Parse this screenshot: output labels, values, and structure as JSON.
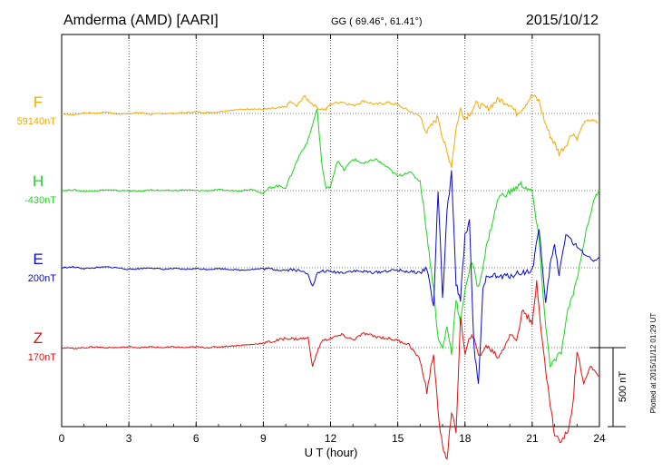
{
  "header": {
    "station": "Amderma (AMD)  [AARI]",
    "coords": "GG ( 69.46°,  61.41°)",
    "date": "2015/10/12"
  },
  "plotted_note": "Plotted at 2015/11/12 01:29 UT",
  "scale_label": "500 nT",
  "colors": {
    "F": "#f5a800",
    "H": "#1ed21e",
    "E": "#0a0ac8",
    "Z": "#e01010",
    "axis": "#000000"
  },
  "chart_data": {
    "type": "line",
    "xlabel": "U T (hour)",
    "xlim": [
      0,
      24
    ],
    "xticks": [
      "0",
      "3",
      "6",
      "9",
      "12",
      "15",
      "18",
      "21",
      "24"
    ],
    "scale_bar_nT": 500,
    "series": [
      {
        "name": "F",
        "baseline_label": "59140nT",
        "x": [
          0,
          0.5,
          1,
          1.5,
          2,
          2.5,
          3,
          3.5,
          4,
          4.5,
          5,
          5.5,
          6,
          6.5,
          7,
          7.5,
          8,
          8.5,
          9,
          9.5,
          10,
          10.2,
          10.5,
          10.8,
          11,
          11.2,
          11.5,
          11.8,
          12,
          12.5,
          13,
          13.5,
          14,
          14.5,
          15,
          15.3,
          15.6,
          16,
          16.3,
          16.6,
          16.8,
          17,
          17.2,
          17.4,
          17.6,
          17.8,
          18,
          18.2,
          18.5,
          19,
          19.5,
          20,
          20.3,
          20.6,
          21,
          21.3,
          21.6,
          21.8,
          22,
          22.2,
          22.5,
          22.8,
          23,
          23.3,
          23.6,
          24
        ],
        "y": [
          0,
          -10,
          5,
          0,
          10,
          -5,
          0,
          5,
          -5,
          0,
          0,
          5,
          10,
          5,
          10,
          20,
          25,
          30,
          25,
          30,
          40,
          75,
          45,
          110,
          85,
          60,
          30,
          25,
          60,
          75,
          50,
          80,
          55,
          70,
          55,
          30,
          10,
          -20,
          -120,
          -60,
          -20,
          -150,
          -250,
          -330,
          -100,
          30,
          -30,
          0,
          60,
          30,
          90,
          60,
          0,
          40,
          115,
          80,
          -70,
          -140,
          -190,
          -250,
          -200,
          -120,
          -160,
          -60,
          -40,
          -60
        ]
      },
      {
        "name": "H",
        "baseline_label": "-430nT",
        "x": [
          0,
          0.5,
          1,
          1.5,
          2,
          2.5,
          3,
          3.5,
          4,
          4.5,
          5,
          5.5,
          6,
          6.5,
          7,
          7.5,
          8,
          8.5,
          9,
          9.3,
          9.6,
          10,
          10.3,
          10.6,
          11,
          11.2,
          11.4,
          11.6,
          11.8,
          12,
          12.3,
          12.6,
          13,
          13.5,
          14,
          14.5,
          15,
          15.5,
          16,
          16.2,
          16.4,
          16.6,
          16.8,
          17,
          17.2,
          17.4,
          17.6,
          17.8,
          18,
          18.3,
          18.6,
          19,
          19.5,
          20,
          20.5,
          21,
          21.3,
          21.6,
          21.8,
          22,
          22.3,
          22.6,
          23,
          23.4,
          23.8,
          24
        ],
        "y": [
          0,
          5,
          -5,
          0,
          5,
          0,
          0,
          -5,
          5,
          0,
          0,
          5,
          0,
          0,
          5,
          0,
          0,
          10,
          -20,
          20,
          30,
          20,
          120,
          220,
          320,
          420,
          520,
          180,
          10,
          30,
          190,
          130,
          200,
          170,
          200,
          150,
          90,
          120,
          60,
          -150,
          -400,
          -620,
          -940,
          -1000,
          -860,
          -1030,
          -680,
          -850,
          -620,
          -450,
          -620,
          -330,
          -40,
          -10,
          40,
          -10,
          -310,
          -860,
          -1100,
          -1080,
          -1020,
          -760,
          -560,
          -260,
          -40,
          0
        ]
      },
      {
        "name": "E",
        "baseline_label": "200nT",
        "x": [
          0,
          0.5,
          1,
          1.5,
          2,
          2.5,
          3,
          3.5,
          4,
          4.5,
          5,
          5.5,
          6,
          6.5,
          7,
          7.5,
          8,
          8.5,
          9,
          9.5,
          10,
          10.3,
          10.6,
          11,
          11.2,
          11.4,
          11.6,
          12,
          12.5,
          13,
          13.5,
          14,
          14.5,
          15,
          15.5,
          16,
          16.3,
          16.6,
          16.8,
          17,
          17.2,
          17.4,
          17.6,
          17.8,
          18,
          18.2,
          18.4,
          18.6,
          18.8,
          19,
          19.5,
          20,
          20.5,
          21,
          21.3,
          21.6,
          21.8,
          22,
          22.2,
          22.5,
          22.8,
          23,
          23.4,
          23.8,
          24
        ],
        "y": [
          0,
          5,
          -5,
          0,
          5,
          0,
          -10,
          -5,
          0,
          -10,
          -5,
          -10,
          -5,
          -10,
          -5,
          -10,
          -15,
          -10,
          -5,
          -10,
          -15,
          -10,
          -20,
          -35,
          -120,
          -40,
          -20,
          -25,
          -30,
          -20,
          -25,
          -30,
          -20,
          -15,
          -25,
          -30,
          0,
          -250,
          500,
          -200,
          350,
          600,
          -100,
          -200,
          200,
          300,
          -500,
          -750,
          -150,
          -40,
          -60,
          -50,
          -30,
          -20,
          260,
          -240,
          20,
          140,
          -40,
          220,
          160,
          130,
          80,
          40,
          60
        ]
      },
      {
        "name": "Z",
        "baseline_label": "170nT",
        "x": [
          0,
          0.5,
          1,
          1.5,
          2,
          2.5,
          3,
          3.5,
          4,
          4.5,
          5,
          5.5,
          6,
          6.5,
          7,
          7.5,
          8,
          8.5,
          9,
          9.5,
          10,
          10.5,
          11,
          11.2,
          11.4,
          11.6,
          12,
          12.5,
          13,
          13.5,
          14,
          14.5,
          15,
          15.5,
          16,
          16.3,
          16.6,
          16.8,
          17,
          17.2,
          17.4,
          17.6,
          17.8,
          18,
          18.3,
          18.6,
          19,
          19.5,
          20,
          20.3,
          20.6,
          21,
          21.2,
          21.4,
          21.6,
          21.8,
          22,
          22.3,
          22.6,
          22.8,
          23,
          23.3,
          23.6,
          24
        ],
        "y": [
          0,
          -5,
          0,
          5,
          0,
          0,
          5,
          0,
          5,
          0,
          5,
          0,
          5,
          0,
          5,
          10,
          15,
          20,
          30,
          40,
          60,
          55,
          60,
          -120,
          -30,
          40,
          60,
          80,
          50,
          90,
          70,
          60,
          45,
          20,
          -80,
          -280,
          -30,
          -420,
          -630,
          -700,
          -400,
          -550,
          200,
          -50,
          100,
          -50,
          10,
          -60,
          80,
          50,
          250,
          140,
          420,
          120,
          -150,
          -350,
          -550,
          -600,
          -520,
          -380,
          -20,
          -220,
          -120,
          -180
        ]
      }
    ]
  }
}
